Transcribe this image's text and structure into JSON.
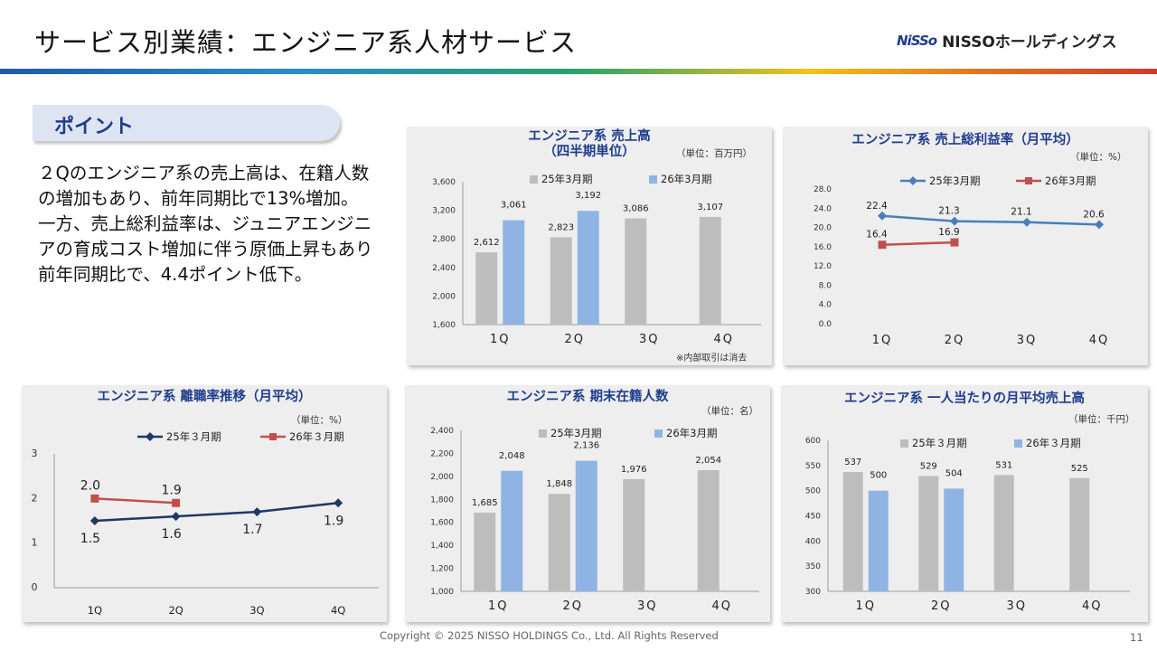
{
  "header": {
    "title": "サービス別業績：エンジニア系人材サービス",
    "logo_mark": "NiSSo",
    "logo_text": "NISSOホールディングス"
  },
  "point": {
    "label": "ポイント",
    "text": "２Qのエンジニア系の売上高は、在籍人数の増加もあり、前年同期比で13%増加。一方、売上総利益率は、ジュニアエンジニアの育成コスト増加に伴う原価上昇もあり前年同期比で、4.4ポイント低下。"
  },
  "colors": {
    "gray_bar": "#bdbdbd",
    "blue_bar": "#8fb4e3",
    "blue_line": "#4a7ebb",
    "red_line": "#c0504d",
    "navy_line": "#1f3864"
  },
  "chart_data": [
    {
      "type": "bar",
      "title": "エンジニア系 売上高",
      "subtitle": "（四半期単位）",
      "unit": "（単位：百万円）",
      "note": "※内部取引は消去",
      "categories": [
        "1Q",
        "2Q",
        "3Q",
        "4Q"
      ],
      "series": [
        {
          "name": "25年3月期",
          "values": [
            2612,
            2823,
            3086,
            3107
          ],
          "labels": [
            "2,612",
            "2,823",
            "3,086",
            "3,107"
          ]
        },
        {
          "name": "26年3月期",
          "values": [
            3061,
            3192,
            null,
            null
          ],
          "labels": [
            "3,061",
            "3,192",
            "",
            ""
          ]
        }
      ],
      "ylim": [
        1600,
        3600
      ],
      "yticks": [
        1600,
        2000,
        2400,
        2800,
        3200,
        3600
      ],
      "yticklabels": [
        "1,600",
        "2,000",
        "2,400",
        "2,800",
        "3,200",
        "3,600"
      ],
      "yticks_shown": [
        1600,
        2000,
        2400,
        2800,
        3200,
        3600
      ],
      "ytick_labels_all": [
        "1,600",
        "2,000",
        "2,400",
        "2,800",
        "3,200",
        "3,600"
      ]
    },
    {
      "type": "line",
      "title": "エンジニア系 売上総利益率（月平均）",
      "unit": "（単位：%）",
      "categories": [
        "1Q",
        "2Q",
        "3Q",
        "4Q"
      ],
      "series": [
        {
          "name": "25年3月期",
          "values": [
            22.4,
            21.3,
            21.1,
            20.6
          ],
          "labels": [
            "22.4",
            "21.3",
            "21.1",
            "20.6"
          ]
        },
        {
          "name": "26年3月期",
          "values": [
            16.4,
            16.9,
            null,
            null
          ],
          "labels": [
            "16.4",
            "16.9",
            "",
            ""
          ]
        }
      ],
      "ylim": [
        0,
        28
      ],
      "yticks": [
        0,
        4,
        8,
        12,
        16,
        20,
        24,
        28
      ],
      "yticklabels": [
        "0.0",
        "4.0",
        "8.0",
        "12.0",
        "16.0",
        "20.0",
        "24.0",
        "28.0"
      ]
    },
    {
      "type": "line",
      "title": "エンジニア系 離職率推移（月平均）",
      "unit": "（単位：%）",
      "categories": [
        "1Q",
        "2Q",
        "3Q",
        "4Q"
      ],
      "series": [
        {
          "name": "25年３月期",
          "values": [
            1.5,
            1.6,
            1.7,
            1.9
          ],
          "labels": [
            "1.5",
            "1.6",
            "1.7",
            "1.9"
          ]
        },
        {
          "name": "26年３月期",
          "values": [
            2.0,
            1.9,
            null,
            null
          ],
          "labels": [
            "2.0",
            "1.9",
            "",
            ""
          ]
        }
      ],
      "ylim": [
        0,
        3
      ],
      "yticks": [
        0,
        1,
        2,
        3
      ],
      "yticklabels": [
        "0",
        "1",
        "2",
        "3"
      ]
    },
    {
      "type": "bar",
      "title": "エンジニア系 期末在籍人数",
      "unit": "（単位：名）",
      "categories": [
        "1Q",
        "2Q",
        "3Q",
        "4Q"
      ],
      "series": [
        {
          "name": "25年3月期",
          "values": [
            1685,
            1848,
            1976,
            2054
          ],
          "labels": [
            "1,685",
            "1,848",
            "1,976",
            "2,054"
          ]
        },
        {
          "name": "26年3月期",
          "values": [
            2048,
            2136,
            null,
            null
          ],
          "labels": [
            "2,048",
            "2,136",
            "",
            ""
          ]
        }
      ],
      "ylim": [
        1000,
        2400
      ],
      "yticks": [
        1000,
        1200,
        1400,
        1600,
        1800,
        2000,
        2200,
        2400
      ],
      "yticklabels": [
        "1,000",
        "1,200",
        "1,400",
        "1,600",
        "1,800",
        "2,000",
        "2,200",
        "2,400"
      ]
    },
    {
      "type": "bar",
      "title": "エンジニア系 一人当たりの月平均売上高",
      "unit": "（単位：千円）",
      "categories": [
        "1Q",
        "2Q",
        "3Q",
        "4Q"
      ],
      "series": [
        {
          "name": "25年３月期",
          "values": [
            537,
            529,
            531,
            525
          ],
          "labels": [
            "537",
            "529",
            "531",
            "525"
          ]
        },
        {
          "name": "26年３月期",
          "values": [
            500,
            504,
            null,
            null
          ],
          "labels": [
            "500",
            "504",
            "",
            ""
          ]
        }
      ],
      "ylim": [
        300,
        600
      ],
      "yticks": [
        300,
        350,
        400,
        450,
        500,
        550,
        600
      ],
      "yticklabels": [
        "300",
        "350",
        "400",
        "450",
        "500",
        "550",
        "600"
      ]
    }
  ],
  "footer": {
    "copyright": "Copyright © 2025 NISSO HOLDINGS Co., Ltd. All Rights Reserved",
    "page": "11"
  }
}
